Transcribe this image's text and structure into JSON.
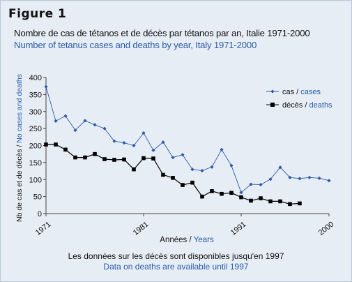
{
  "figure_label": "Figure 1",
  "title_fr": "Nombre de cas de tétanos et de décès par tétanos par an, Italie 1971-2000",
  "title_en": "Number of tetanus cases and deaths by year, Italy 1971-2000",
  "footnote_fr": "Les données sur les décès sont disponibles jusqu'en 1997",
  "footnote_en": "Data on deaths are available until 1997",
  "colors": {
    "cases": "#2f5aa8",
    "deaths": "#000000",
    "english_text": "#2b5ba8",
    "background": "#e6edf5"
  },
  "chart_data": {
    "type": "line",
    "xlabel_fr": "Années",
    "xlabel_sep": " / ",
    "xlabel_en": "Years",
    "ylabel_fr": "Nb de cas et de décès",
    "ylabel_sep": " / ",
    "ylabel_en": "No cases and deaths",
    "xlim": [
      1971,
      2000
    ],
    "ylim": [
      0,
      400
    ],
    "x_ticks": [
      1971,
      1981,
      1991,
      2000
    ],
    "y_ticks": [
      0,
      50,
      100,
      150,
      200,
      250,
      300,
      350,
      400
    ],
    "legend_position": "top-right",
    "grid": false,
    "series": [
      {
        "key": "cases",
        "label_fr": "cas",
        "label_sep": " / ",
        "label_en": "cases",
        "marker": "diamond",
        "x": [
          1971,
          1972,
          1973,
          1974,
          1975,
          1976,
          1977,
          1978,
          1979,
          1980,
          1981,
          1982,
          1983,
          1984,
          1985,
          1986,
          1987,
          1988,
          1989,
          1990,
          1991,
          1992,
          1993,
          1994,
          1995,
          1996,
          1997,
          1998,
          1999,
          2000
        ],
        "values": [
          373,
          272,
          287,
          245,
          273,
          261,
          250,
          213,
          208,
          200,
          237,
          186,
          210,
          165,
          173,
          130,
          126,
          137,
          188,
          141,
          62,
          86,
          85,
          101,
          136,
          106,
          103,
          106,
          104,
          97
        ]
      },
      {
        "key": "deaths",
        "label_fr": "décès",
        "label_sep": " / ",
        "label_en": "deaths",
        "marker": "square",
        "x": [
          1971,
          1972,
          1973,
          1974,
          1975,
          1976,
          1977,
          1978,
          1979,
          1980,
          1981,
          1982,
          1983,
          1984,
          1985,
          1986,
          1987,
          1988,
          1989,
          1990,
          1991,
          1992,
          1993,
          1994,
          1995,
          1996,
          1997
        ],
        "values": [
          203,
          203,
          188,
          165,
          165,
          175,
          160,
          158,
          159,
          130,
          163,
          162,
          114,
          105,
          84,
          91,
          50,
          66,
          58,
          61,
          48,
          38,
          45,
          36,
          36,
          28,
          30
        ]
      }
    ]
  }
}
